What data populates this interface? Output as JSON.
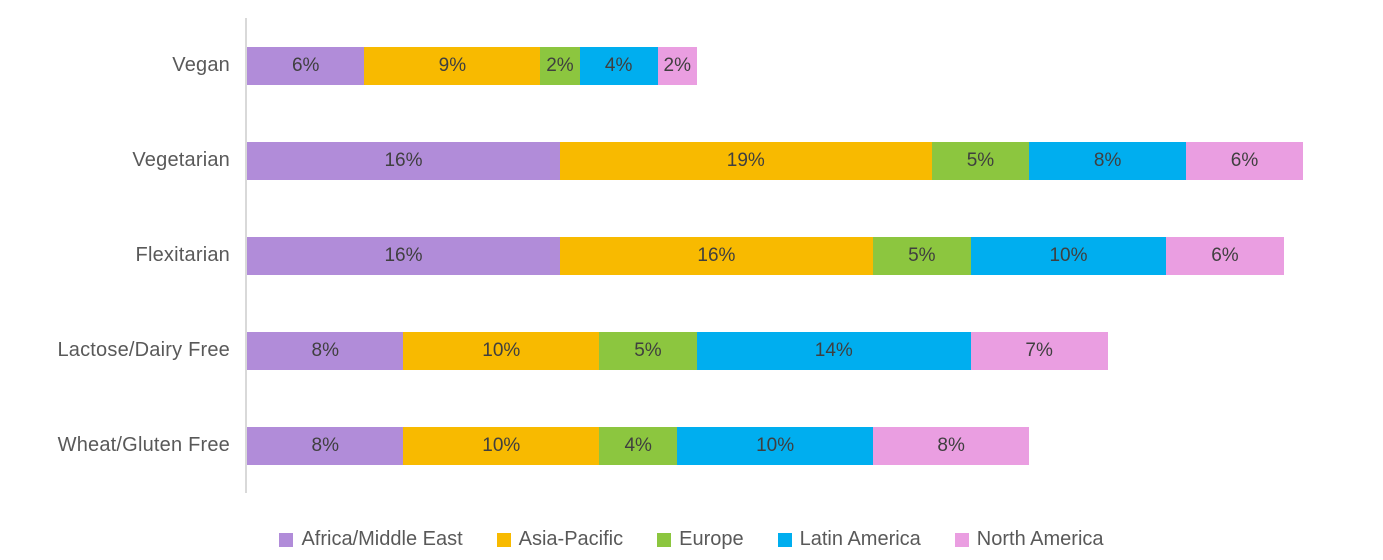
{
  "chart_data": {
    "type": "bar",
    "orientation": "horizontal",
    "stacked": true,
    "title": "",
    "xlabel": "",
    "ylabel": "",
    "xlim": [
      0,
      60
    ],
    "grid": false,
    "legend_position": "bottom",
    "value_suffix": "%",
    "categories": [
      "Vegan",
      "Vegetarian",
      "Flexitarian",
      "Lactose/Dairy Free",
      "Wheat/Gluten Free"
    ],
    "series": [
      {
        "name": "Africa/Middle East",
        "color": "#b18cd9",
        "values": [
          6,
          16,
          16,
          8,
          8
        ]
      },
      {
        "name": "Asia-Pacific",
        "color": "#f8ba00",
        "values": [
          9,
          19,
          16,
          10,
          10
        ]
      },
      {
        "name": "Europe",
        "color": "#8cc63f",
        "values": [
          2,
          5,
          5,
          5,
          4
        ]
      },
      {
        "name": "Latin America",
        "color": "#00aeef",
        "values": [
          4,
          8,
          10,
          14,
          10
        ]
      },
      {
        "name": "North America",
        "color": "#ea9ee1",
        "values": [
          2,
          6,
          6,
          7,
          8
        ]
      }
    ],
    "colors": {
      "axis_line": "#d9d9d9",
      "bar_label": "#3f3f3f",
      "category_label": "#595959",
      "legend_label": "#595959"
    }
  }
}
